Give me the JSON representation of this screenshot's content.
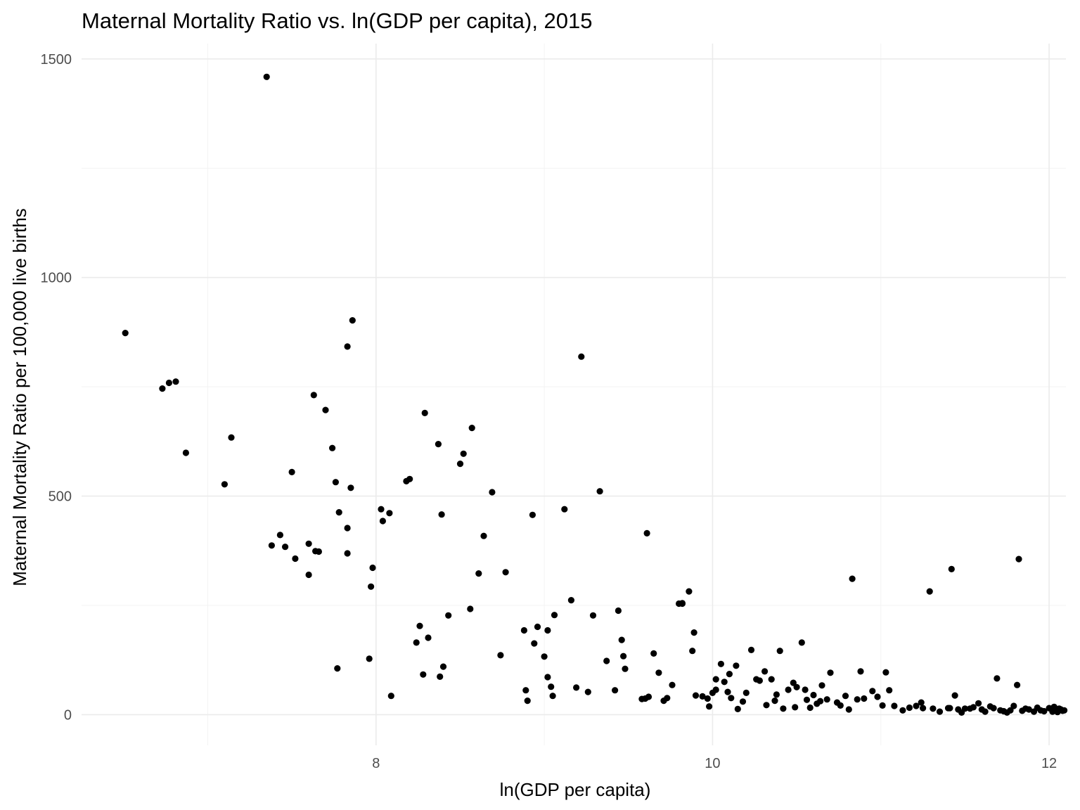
{
  "chart_data": {
    "type": "scatter",
    "title": "Maternal Mortality Ratio vs. ln(GDP per capita), 2015",
    "xlabel": "ln(GDP per capita)",
    "ylabel": "Maternal Mortality Ratio per 100,000 live births",
    "xlim": [
      6.25,
      12.1
    ],
    "ylim": [
      -70,
      1535
    ],
    "x_ticks": [
      8,
      10,
      12
    ],
    "x_tick_labels": [
      "8",
      "10",
      "12"
    ],
    "y_ticks": [
      0,
      500,
      1000,
      1500
    ],
    "y_tick_labels": [
      "0",
      "500",
      "1000",
      "1500"
    ],
    "grid": true,
    "legend": "none",
    "point_color": "#000000",
    "points": [
      [
        6.51,
        873
      ],
      [
        6.73,
        746
      ],
      [
        6.77,
        759
      ],
      [
        6.81,
        762
      ],
      [
        6.87,
        599
      ],
      [
        7.1,
        527
      ],
      [
        7.14,
        634
      ],
      [
        7.38,
        387
      ],
      [
        7.43,
        411
      ],
      [
        7.46,
        384
      ],
      [
        7.5,
        555
      ],
      [
        7.52,
        357
      ],
      [
        7.6,
        320
      ],
      [
        7.6,
        391
      ],
      [
        7.63,
        731
      ],
      [
        7.64,
        374
      ],
      [
        7.66,
        373
      ],
      [
        7.7,
        697
      ],
      [
        7.74,
        610
      ],
      [
        7.76,
        532
      ],
      [
        7.77,
        106
      ],
      [
        7.78,
        463
      ],
      [
        7.35,
        1459
      ],
      [
        7.83,
        842
      ],
      [
        7.83,
        427
      ],
      [
        7.83,
        369
      ],
      [
        7.85,
        519
      ],
      [
        7.86,
        902
      ],
      [
        7.96,
        128
      ],
      [
        7.97,
        293
      ],
      [
        7.98,
        336
      ],
      [
        8.03,
        470
      ],
      [
        8.04,
        443
      ],
      [
        8.08,
        461
      ],
      [
        8.09,
        43
      ],
      [
        8.18,
        534
      ],
      [
        8.2,
        539
      ],
      [
        8.24,
        165
      ],
      [
        8.26,
        203
      ],
      [
        8.28,
        92
      ],
      [
        8.29,
        690
      ],
      [
        8.31,
        176
      ],
      [
        8.37,
        619
      ],
      [
        8.38,
        87
      ],
      [
        8.39,
        458
      ],
      [
        8.4,
        110
      ],
      [
        8.43,
        227
      ],
      [
        8.5,
        574
      ],
      [
        8.52,
        597
      ],
      [
        8.56,
        242
      ],
      [
        8.57,
        656
      ],
      [
        8.61,
        323
      ],
      [
        8.64,
        409
      ],
      [
        8.69,
        509
      ],
      [
        8.74,
        136
      ],
      [
        8.77,
        326
      ],
      [
        8.88,
        193
      ],
      [
        8.89,
        56
      ],
      [
        8.9,
        32
      ],
      [
        8.93,
        457
      ],
      [
        8.94,
        163
      ],
      [
        8.96,
        201
      ],
      [
        9.0,
        133
      ],
      [
        9.02,
        86
      ],
      [
        9.02,
        193
      ],
      [
        9.04,
        64
      ],
      [
        9.05,
        43
      ],
      [
        9.06,
        228
      ],
      [
        9.12,
        470
      ],
      [
        9.16,
        262
      ],
      [
        9.19,
        62
      ],
      [
        9.22,
        819
      ],
      [
        9.26,
        52
      ],
      [
        9.29,
        227
      ],
      [
        9.33,
        511
      ],
      [
        9.37,
        123
      ],
      [
        9.42,
        56
      ],
      [
        9.44,
        238
      ],
      [
        9.46,
        171
      ],
      [
        9.47,
        134
      ],
      [
        9.48,
        105
      ],
      [
        9.58,
        36
      ],
      [
        9.6,
        37
      ],
      [
        9.61,
        415
      ],
      [
        9.62,
        41
      ],
      [
        9.65,
        140
      ],
      [
        9.68,
        96
      ],
      [
        9.71,
        32
      ],
      [
        9.73,
        38
      ],
      [
        9.76,
        68
      ],
      [
        9.8,
        254
      ],
      [
        9.82,
        255
      ],
      [
        9.82,
        254
      ],
      [
        9.86,
        282
      ],
      [
        9.88,
        146
      ],
      [
        9.89,
        188
      ],
      [
        9.9,
        44
      ],
      [
        9.94,
        42
      ],
      [
        9.97,
        37
      ],
      [
        9.98,
        19
      ],
      [
        10.0,
        50
      ],
      [
        10.02,
        57
      ],
      [
        10.02,
        81
      ],
      [
        10.05,
        116
      ],
      [
        10.07,
        75
      ],
      [
        10.09,
        52
      ],
      [
        10.1,
        93
      ],
      [
        10.11,
        38
      ],
      [
        10.14,
        112
      ],
      [
        10.15,
        13
      ],
      [
        10.18,
        30
      ],
      [
        10.2,
        50
      ],
      [
        10.23,
        148
      ],
      [
        10.26,
        81
      ],
      [
        10.28,
        78
      ],
      [
        10.31,
        99
      ],
      [
        10.32,
        22
      ],
      [
        10.35,
        81
      ],
      [
        10.37,
        32
      ],
      [
        10.38,
        46
      ],
      [
        10.4,
        146
      ],
      [
        10.42,
        14
      ],
      [
        10.45,
        57
      ],
      [
        10.48,
        73
      ],
      [
        10.49,
        17
      ],
      [
        10.5,
        63
      ],
      [
        10.53,
        165
      ],
      [
        10.55,
        57
      ],
      [
        10.56,
        34
      ],
      [
        10.58,
        16
      ],
      [
        10.6,
        45
      ],
      [
        10.62,
        25
      ],
      [
        10.64,
        31
      ],
      [
        10.65,
        67
      ],
      [
        10.68,
        35
      ],
      [
        10.7,
        96
      ],
      [
        10.74,
        28
      ],
      [
        10.76,
        21
      ],
      [
        10.79,
        43
      ],
      [
        10.81,
        12
      ],
      [
        10.83,
        311
      ],
      [
        10.86,
        35
      ],
      [
        10.88,
        99
      ],
      [
        10.9,
        37
      ],
      [
        10.95,
        54
      ],
      [
        10.98,
        41
      ],
      [
        11.01,
        21
      ],
      [
        11.03,
        97
      ],
      [
        11.05,
        56
      ],
      [
        11.08,
        20
      ],
      [
        11.13,
        10
      ],
      [
        11.17,
        16
      ],
      [
        11.21,
        20
      ],
      [
        11.24,
        28
      ],
      [
        11.25,
        15
      ],
      [
        11.29,
        282
      ],
      [
        11.31,
        14
      ],
      [
        11.35,
        7
      ],
      [
        11.4,
        15
      ],
      [
        11.41,
        15
      ],
      [
        11.42,
        333
      ],
      [
        11.44,
        44
      ],
      [
        11.46,
        12
      ],
      [
        11.48,
        5
      ],
      [
        11.5,
        14
      ],
      [
        11.53,
        14
      ],
      [
        11.55,
        17
      ],
      [
        11.58,
        26
      ],
      [
        11.6,
        12
      ],
      [
        11.62,
        7
      ],
      [
        11.65,
        19
      ],
      [
        11.67,
        15
      ],
      [
        11.69,
        83
      ],
      [
        11.71,
        10
      ],
      [
        11.73,
        8
      ],
      [
        11.75,
        5
      ],
      [
        11.77,
        10
      ],
      [
        11.79,
        20
      ],
      [
        11.81,
        68
      ],
      [
        11.82,
        356
      ],
      [
        11.84,
        9
      ],
      [
        11.86,
        14
      ],
      [
        11.88,
        12
      ],
      [
        11.91,
        7
      ],
      [
        11.93,
        16
      ],
      [
        11.95,
        10
      ],
      [
        11.97,
        8
      ],
      [
        12.0,
        15
      ],
      [
        12.02,
        7
      ],
      [
        12.04,
        11
      ],
      [
        12.06,
        14
      ],
      [
        12.08,
        9
      ],
      [
        12.05,
        6
      ],
      [
        12.07,
        12
      ],
      [
        12.09,
        10
      ],
      [
        12.03,
        18
      ]
    ]
  }
}
